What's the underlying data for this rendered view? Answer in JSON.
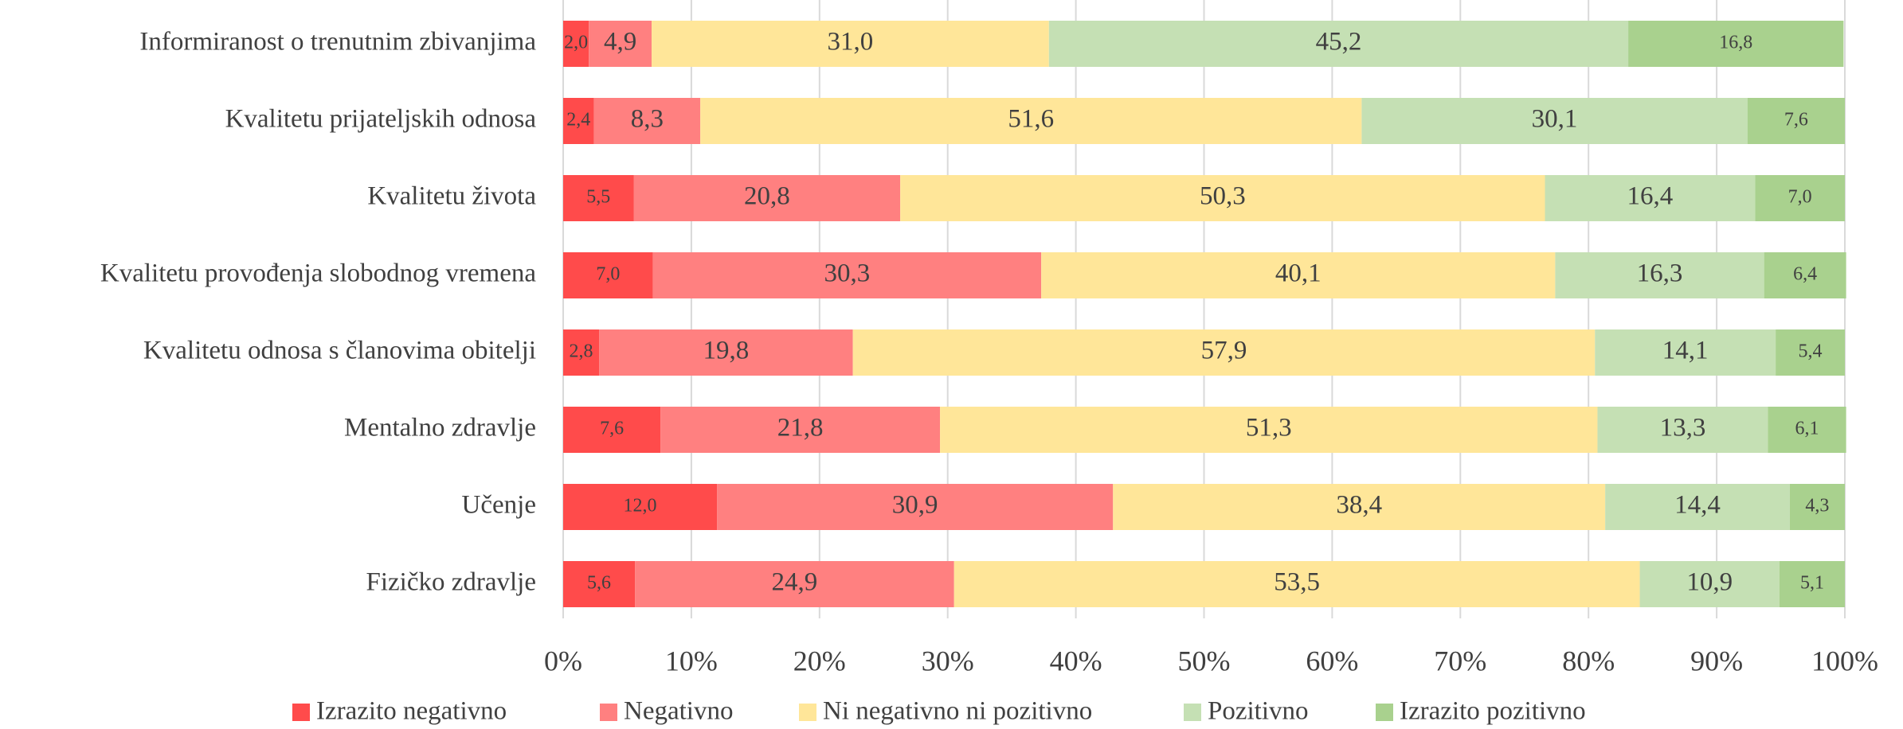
{
  "chart_data": {
    "type": "stacked_bar_horizontal",
    "categories": [
      "Informiranost o trenutnim zbivanjima",
      "Kvalitetu prijateljskih odnosa",
      "Kvalitetu života",
      "Kvalitetu provođenja slobodnog vremena",
      "Kvalitetu odnosa s članovima obitelji",
      "Mentalno zdravlje",
      "Učenje",
      "Fizičko zdravlje"
    ],
    "series": [
      {
        "name": "Izrazito negativno",
        "color": "#ff4b4b",
        "values": [
          2.0,
          2.4,
          5.5,
          7.0,
          2.8,
          7.6,
          12.0,
          5.6
        ],
        "value_labels": [
          "2,0",
          "2,4",
          "5,5",
          "7,0",
          "2,8",
          "7,6",
          "12,0",
          "5,6"
        ]
      },
      {
        "name": "Negativno",
        "color": "#ff8080",
        "values": [
          4.9,
          8.3,
          20.8,
          30.3,
          19.8,
          21.8,
          30.9,
          24.9
        ],
        "value_labels": [
          "4,9",
          "8,3",
          "20,8",
          "30,3",
          "19,8",
          "21,8",
          "30,9",
          "24,9"
        ]
      },
      {
        "name": "Ni negativno ni pozitivno",
        "color": "#ffe699",
        "values": [
          31.0,
          51.6,
          50.3,
          40.1,
          57.9,
          51.3,
          38.4,
          53.5
        ],
        "value_labels": [
          "31,0",
          "51,6",
          "50,3",
          "40,1",
          "57,9",
          "51,3",
          "38,4",
          "53,5"
        ]
      },
      {
        "name": "Pozitivno",
        "color": "#c5e0b4",
        "values": [
          45.2,
          30.1,
          16.4,
          16.3,
          14.1,
          13.3,
          14.4,
          10.9
        ],
        "value_labels": [
          "45,2",
          "30,1",
          "16,4",
          "16,3",
          "14,1",
          "13,3",
          "14,4",
          "10,9"
        ]
      },
      {
        "name": "Izrazito pozitivno",
        "color": "#a9d18e",
        "values": [
          16.8,
          7.6,
          7.0,
          6.4,
          5.4,
          6.1,
          4.3,
          5.1
        ],
        "value_labels": [
          "16,8",
          "7,6",
          "7,0",
          "6,4",
          "5,4",
          "6,1",
          "4,3",
          "5,1"
        ]
      }
    ],
    "xlim": [
      0,
      100
    ],
    "xticks": [
      {
        "value": 0,
        "label": "0%"
      },
      {
        "value": 10,
        "label": "10%"
      },
      {
        "value": 20,
        "label": "20%"
      },
      {
        "value": 30,
        "label": "30%"
      },
      {
        "value": 40,
        "label": "40%"
      },
      {
        "value": 50,
        "label": "50%"
      },
      {
        "value": 60,
        "label": "60%"
      },
      {
        "value": 70,
        "label": "70%"
      },
      {
        "value": 80,
        "label": "80%"
      },
      {
        "value": 90,
        "label": "90%"
      },
      {
        "value": 100,
        "label": "100%"
      }
    ],
    "grid": true,
    "legend": "bottom"
  }
}
